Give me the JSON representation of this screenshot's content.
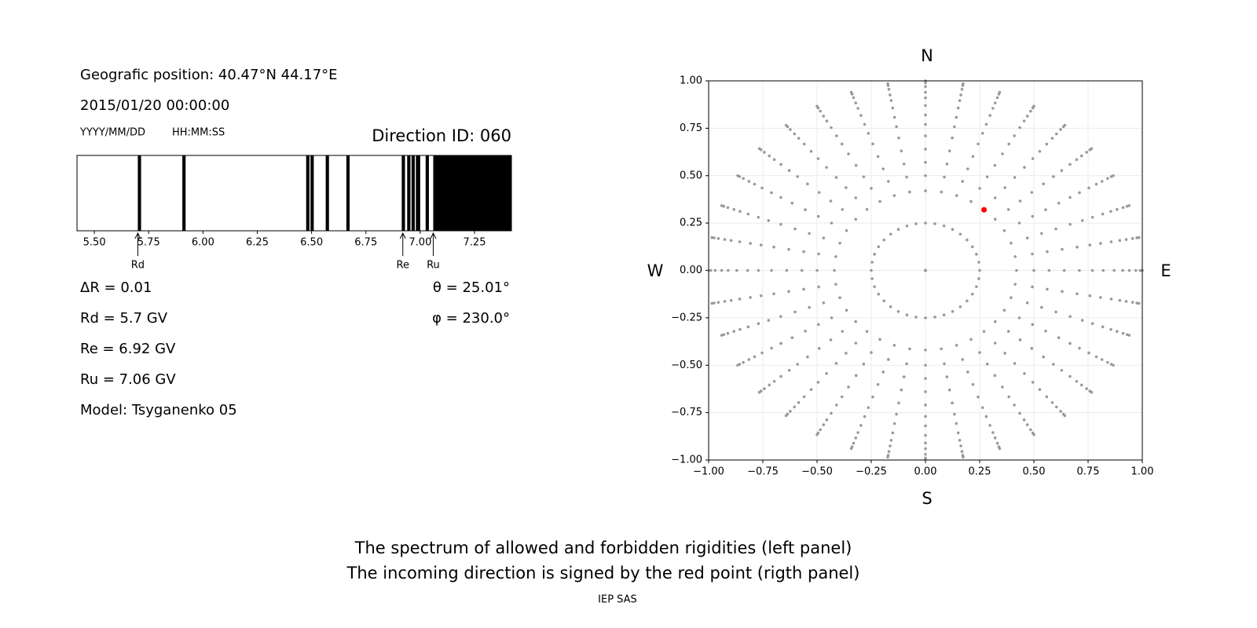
{
  "header": {
    "position": "Geografic position: 40.47°N 44.17°E",
    "datetime": "2015/01/20 00:00:00",
    "date_format": "YYYY/MM/DD",
    "time_format": "HH:MM:SS",
    "direction": "Direction ID: 060"
  },
  "info": {
    "delta": "ΔR = 0.01",
    "rd": "Rd = 5.7 GV",
    "re": "Re = 6.92 GV",
    "ru": "Ru = 7.06 GV",
    "model": "Model: Tsyganenko 05",
    "theta": "θ = 25.01°",
    "phi": "φ = 230.0°"
  },
  "chart_data": [
    {
      "type": "spectrum",
      "color": "#000000",
      "xlim": [
        5.42,
        7.42
      ],
      "xticks": [
        {
          "value": 5.5,
          "label": "5.50"
        },
        5.75,
        {
          "value": 6,
          "label": "6.00"
        },
        6.25,
        {
          "value": 6.5,
          "label": "6.50"
        },
        6.75,
        {
          "value": 7,
          "label": "7.00"
        },
        7.25
      ],
      "bands": [
        [
          5.7,
          5.715
        ],
        [
          5.905,
          5.92
        ],
        [
          6.475,
          6.49
        ],
        [
          6.495,
          6.51
        ],
        [
          6.565,
          6.58
        ],
        [
          6.66,
          6.675
        ],
        [
          6.915,
          6.93
        ],
        [
          6.94,
          6.955
        ],
        [
          6.96,
          6.975
        ],
        [
          6.98,
          7.0
        ],
        [
          7.025,
          7.04
        ],
        [
          7.06,
          7.42
        ]
      ],
      "markers": [
        {
          "label": "Rd",
          "x": 5.7
        },
        {
          "label": "Re",
          "x": 6.92
        },
        {
          "label": "Ru",
          "x": 7.06
        }
      ]
    },
    {
      "type": "sky",
      "xlim": [
        -1,
        1
      ],
      "ylim": [
        -1,
        1
      ],
      "grid": true,
      "xticks": [
        {
          "value": -1,
          "label": "−1.00"
        },
        {
          "value": -0.75,
          "label": "−0.75"
        },
        {
          "value": -0.5,
          "label": "−0.50"
        },
        {
          "value": -0.25,
          "label": "−0.25"
        },
        {
          "value": 0,
          "label": "0.00"
        },
        {
          "value": 0.25,
          "label": "0.25"
        },
        {
          "value": 0.5,
          "label": "0.50"
        },
        {
          "value": 0.75,
          "label": "0.75"
        },
        {
          "value": 1,
          "label": "1.00"
        }
      ],
      "yticks": [
        {
          "value": -1,
          "label": "−1.00"
        },
        {
          "value": -0.75,
          "label": "−0.75"
        },
        {
          "value": -0.5,
          "label": "−0.50"
        },
        {
          "value": -0.25,
          "label": "−0.25"
        },
        {
          "value": 0,
          "label": "0.00"
        },
        {
          "value": 0.25,
          "label": "0.25"
        },
        {
          "value": 0.5,
          "label": "0.50"
        },
        {
          "value": 0.75,
          "label": "0.75"
        },
        {
          "value": 1,
          "label": "1.00"
        }
      ],
      "compass": {
        "north": "N",
        "south": "S",
        "west": "W",
        "east": "E"
      },
      "points": {
        "color": "#999999",
        "radii": [
          0,
          0.25,
          0.42,
          0.5,
          0.57,
          0.64,
          0.71,
          0.77,
          0.82,
          0.87,
          0.91,
          0.94,
          0.97,
          0.99,
          1.0
        ],
        "azimuths": [
          0,
          10,
          20,
          30,
          40,
          50,
          60,
          70,
          80,
          90,
          100,
          110,
          120,
          130,
          140,
          150,
          160,
          170,
          180,
          190,
          200,
          210,
          220,
          230,
          240,
          250,
          260,
          270,
          280,
          290,
          300,
          310,
          320,
          330,
          340,
          350
        ]
      },
      "highlight": {
        "color": "#ff0000",
        "x": [
          0.27
        ],
        "y": [
          0.32
        ]
      }
    }
  ],
  "footer": {
    "lines": [
      "The spectrum of allowed and forbidden rigidities (left panel)",
      "The incoming direction is signed by the red point (rigth panel)"
    ],
    "credit": "IEP SAS"
  }
}
